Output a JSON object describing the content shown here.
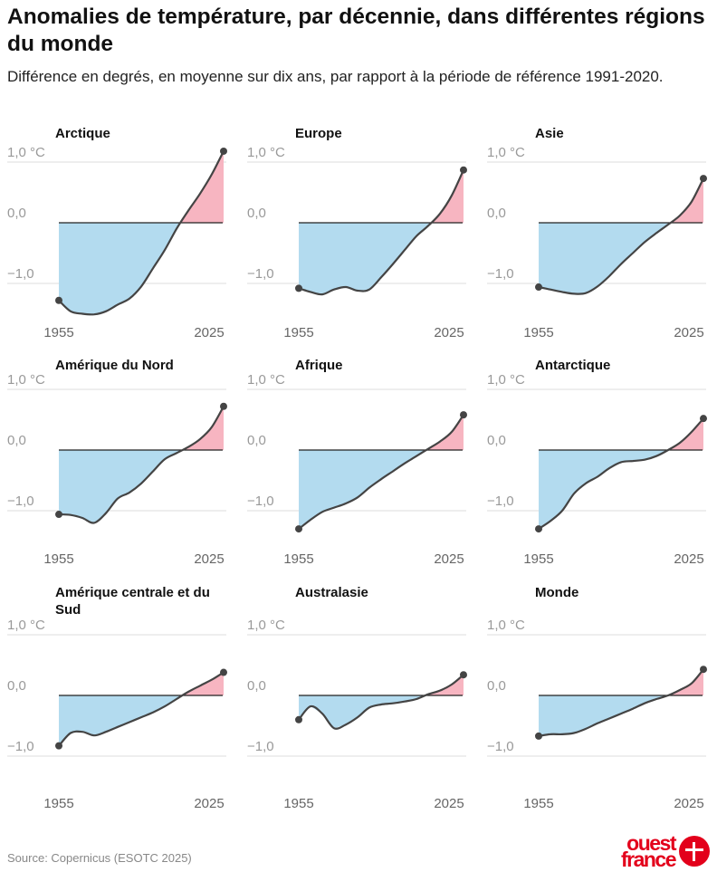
{
  "title": "Anomalies de température, par décennie, dans différentes régions du monde",
  "subtitle": "Différence en degrés, en moyenne sur dix ans, par rapport à la période de référence 1991-2020.",
  "source": "Source: Copernicus (ESOTC 2025)",
  "logo": {
    "line1": "ouest",
    "line2": "france"
  },
  "colors": {
    "negative_fill": "#b3dbef",
    "positive_fill": "#f7b5c1",
    "line": "#444444",
    "grid": "#dddddd",
    "zero_axis": "#222222"
  },
  "chart_data": [
    {
      "type": "area",
      "title": "Arctique",
      "y_ticks": [
        "1,0 °C",
        "0,0",
        "−1,0"
      ],
      "y_tick_values": [
        1,
        0,
        -1
      ],
      "x_ticks": [
        "1955",
        "2025"
      ],
      "ylim": [
        -1.7,
        1.3
      ],
      "x": [
        1955,
        1960,
        1965,
        1970,
        1975,
        1980,
        1985,
        1990,
        1995,
        2000,
        2005,
        2010,
        2015,
        2020,
        2025
      ],
      "values": [
        -1.28,
        -1.46,
        -1.5,
        -1.51,
        -1.46,
        -1.35,
        -1.25,
        -1.05,
        -0.75,
        -0.45,
        -0.1,
        0.2,
        0.48,
        0.8,
        1.18
      ]
    },
    {
      "type": "area",
      "title": "Europe",
      "y_ticks": [
        "1,0 °C",
        "0,0",
        "−1,0"
      ],
      "y_tick_values": [
        1,
        0,
        -1
      ],
      "x_ticks": [
        "1955",
        "2025"
      ],
      "ylim": [
        -1.7,
        1.3
      ],
      "x": [
        1955,
        1960,
        1965,
        1970,
        1975,
        1980,
        1985,
        1990,
        1995,
        2000,
        2005,
        2010,
        2015,
        2020,
        2025
      ],
      "values": [
        -1.08,
        -1.14,
        -1.18,
        -1.1,
        -1.06,
        -1.12,
        -1.1,
        -0.9,
        -0.68,
        -0.45,
        -0.22,
        -0.05,
        0.15,
        0.45,
        0.87
      ]
    },
    {
      "type": "area",
      "title": "Asie",
      "y_ticks": [
        "1,0 °C",
        "0,0",
        "−1,0"
      ],
      "y_tick_values": [
        1,
        0,
        -1
      ],
      "x_ticks": [
        "1955",
        "2025"
      ],
      "ylim": [
        -1.7,
        1.3
      ],
      "x": [
        1955,
        1960,
        1965,
        1970,
        1975,
        1980,
        1985,
        1990,
        1995,
        2000,
        2005,
        2010,
        2015,
        2020,
        2025
      ],
      "values": [
        -1.06,
        -1.1,
        -1.14,
        -1.17,
        -1.16,
        -1.05,
        -0.88,
        -0.68,
        -0.5,
        -0.32,
        -0.17,
        -0.03,
        0.12,
        0.35,
        0.73
      ]
    },
    {
      "type": "area",
      "title": "Amérique du Nord",
      "y_ticks": [
        "1,0 °C",
        "0,0",
        "−1,0"
      ],
      "y_tick_values": [
        1,
        0,
        -1
      ],
      "x_ticks": [
        "1955",
        "2025"
      ],
      "ylim": [
        -1.7,
        1.3
      ],
      "x": [
        1955,
        1960,
        1965,
        1970,
        1975,
        1980,
        1985,
        1990,
        1995,
        2000,
        2005,
        2010,
        2015,
        2020,
        2025
      ],
      "values": [
        -1.06,
        -1.07,
        -1.12,
        -1.2,
        -1.04,
        -0.8,
        -0.7,
        -0.55,
        -0.35,
        -0.15,
        -0.05,
        0.05,
        0.18,
        0.38,
        0.72
      ]
    },
    {
      "type": "area",
      "title": "Afrique",
      "y_ticks": [
        "1,0 °C",
        "0,0",
        "−1,0"
      ],
      "y_tick_values": [
        1,
        0,
        -1
      ],
      "x_ticks": [
        "1955",
        "2025"
      ],
      "ylim": [
        -1.7,
        1.3
      ],
      "x": [
        1955,
        1960,
        1965,
        1970,
        1975,
        1980,
        1985,
        1990,
        1995,
        2000,
        2005,
        2010,
        2015,
        2020,
        2025
      ],
      "values": [
        -1.3,
        -1.15,
        -1.02,
        -0.95,
        -0.88,
        -0.78,
        -0.62,
        -0.48,
        -0.35,
        -0.22,
        -0.1,
        0.02,
        0.14,
        0.3,
        0.58
      ]
    },
    {
      "type": "area",
      "title": "Antarctique",
      "y_ticks": [
        "1,0 °C",
        "0,0",
        "−1,0"
      ],
      "y_tick_values": [
        1,
        0,
        -1
      ],
      "x_ticks": [
        "1955",
        "2025"
      ],
      "ylim": [
        -1.7,
        1.3
      ],
      "x": [
        1955,
        1960,
        1965,
        1970,
        1975,
        1980,
        1985,
        1990,
        1995,
        2000,
        2005,
        2010,
        2015,
        2020,
        2025
      ],
      "values": [
        -1.3,
        -1.17,
        -1.0,
        -0.72,
        -0.55,
        -0.44,
        -0.3,
        -0.2,
        -0.18,
        -0.16,
        -0.1,
        0.0,
        0.12,
        0.3,
        0.52
      ]
    },
    {
      "type": "area",
      "title": "Amérique centrale et du Sud",
      "y_ticks": [
        "1,0 °C",
        "0,0",
        "−1,0"
      ],
      "y_tick_values": [
        1,
        0,
        -1
      ],
      "x_ticks": [
        "1955",
        "2025"
      ],
      "ylim": [
        -1.3,
        1.15
      ],
      "x": [
        1955,
        1960,
        1965,
        1970,
        1975,
        1980,
        1985,
        1990,
        1995,
        2000,
        2005,
        2010,
        2015,
        2020,
        2025
      ],
      "values": [
        -0.83,
        -0.62,
        -0.6,
        -0.66,
        -0.6,
        -0.52,
        -0.44,
        -0.36,
        -0.28,
        -0.18,
        -0.06,
        0.06,
        0.16,
        0.26,
        0.38
      ]
    },
    {
      "type": "area",
      "title": "Australasie",
      "y_ticks": [
        "1,0 °C",
        "0,0",
        "−1,0"
      ],
      "y_tick_values": [
        1,
        0,
        -1
      ],
      "x_ticks": [
        "1955",
        "2025"
      ],
      "ylim": [
        -1.3,
        1.15
      ],
      "x": [
        1955,
        1960,
        1965,
        1970,
        1975,
        1980,
        1985,
        1990,
        1995,
        2000,
        2005,
        2010,
        2015,
        2020,
        2025
      ],
      "values": [
        -0.4,
        -0.18,
        -0.3,
        -0.54,
        -0.48,
        -0.36,
        -0.2,
        -0.15,
        -0.13,
        -0.1,
        -0.06,
        0.02,
        0.08,
        0.18,
        0.34
      ]
    },
    {
      "type": "area",
      "title": "Monde",
      "y_ticks": [
        "1,0 °C",
        "0,0",
        "−1,0"
      ],
      "y_tick_values": [
        1,
        0,
        -1
      ],
      "x_ticks": [
        "1955",
        "2025"
      ],
      "ylim": [
        -1.3,
        1.15
      ],
      "x": [
        1955,
        1960,
        1965,
        1970,
        1975,
        1980,
        1985,
        1990,
        1995,
        2000,
        2005,
        2010,
        2015,
        2020,
        2025
      ],
      "values": [
        -0.67,
        -0.64,
        -0.64,
        -0.62,
        -0.55,
        -0.46,
        -0.38,
        -0.3,
        -0.22,
        -0.13,
        -0.06,
        0.0,
        0.09,
        0.2,
        0.43
      ]
    }
  ]
}
